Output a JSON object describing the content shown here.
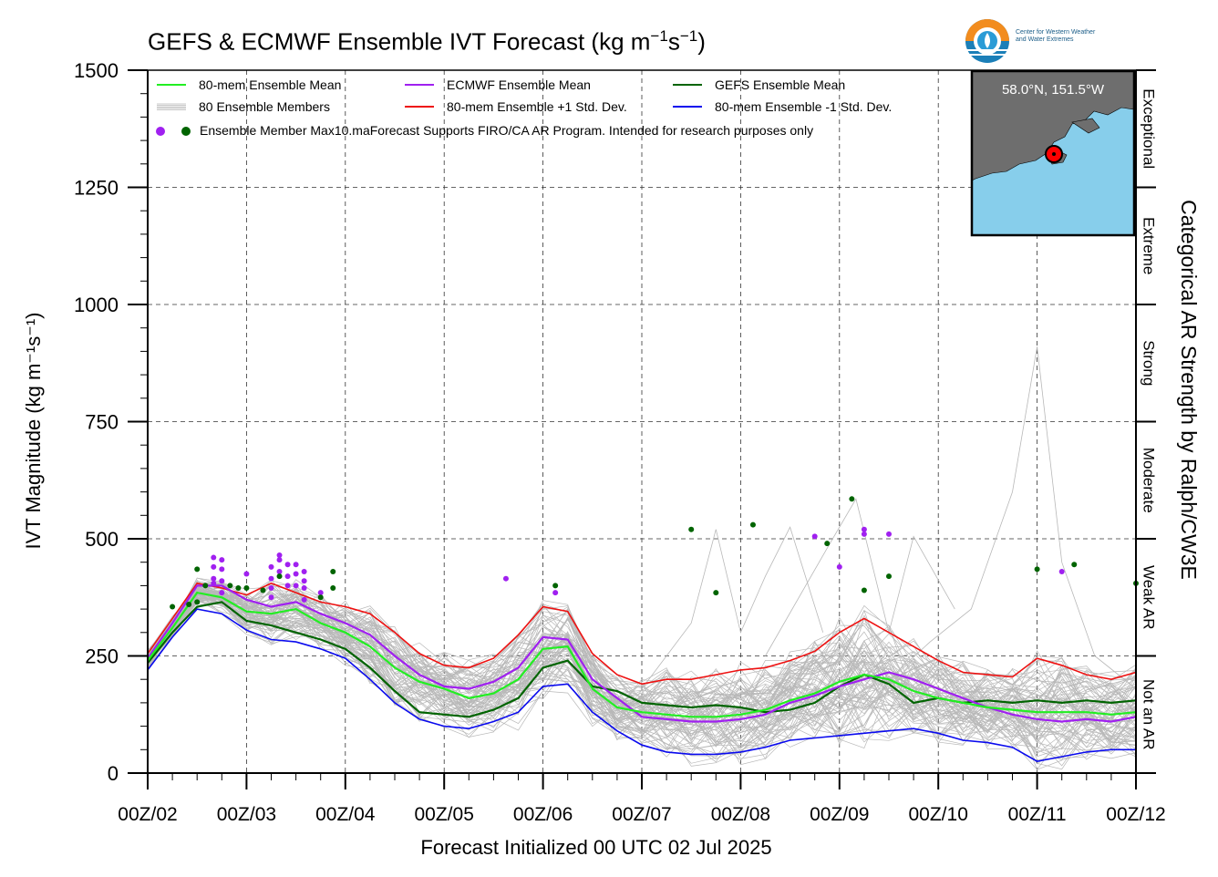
{
  "title": "GEFS & ECMWF Ensemble IVT Forecast (kg m",
  "title_units": {
    "sup1": "−1",
    "mid": "s",
    "sup2": "−1",
    "close": ")"
  },
  "logo": {
    "line1": "Center for Western Weather",
    "line2": "and Water Extremes"
  },
  "inset": {
    "label": "58.0°N, 151.5°W"
  },
  "legend": {
    "mean80": "80-mem Ensemble Mean",
    "members": "80 Ensemble Members",
    "max": "Ensemble Member Max10.maForecast Supports FIRO/CA AR Program. Intended for research purposes only",
    "ecmwf": "ECMWF Ensemble Mean",
    "plus": "80-mem Ensemble +1 Std. Dev.",
    "gefs": "GEFS Ensemble Mean",
    "minus": "80-mem Ensemble -1 Std. Dev."
  },
  "ar_categories": [
    "Not an AR",
    "Weak AR",
    "Moderate",
    "Strong",
    "Extreme",
    "Exceptional"
  ],
  "right_axis_label": "Categorical AR Strength by Ralph/CW3E",
  "colors": {
    "mean80": "#22ee22",
    "ecmwf": "#a020f0",
    "gefs": "#006400",
    "plus": "#ee1111",
    "minus": "#0a0aee",
    "members": "#b8b8b8",
    "inset_land": "#6e6e6e",
    "inset_ocean": "#87ceeb",
    "marker": "#ff0000"
  },
  "chart_data": {
    "type": "line",
    "title": "GEFS & ECMWF Ensemble IVT Forecast (kg m⁻¹s⁻¹)",
    "xlabel": "Forecast Initialized 00 UTC 02 Jul 2025",
    "ylabel": "IVT Magnitude (kg m⁻¹s⁻¹)",
    "ylim": [
      0,
      1500
    ],
    "yticks": [
      0,
      250,
      500,
      750,
      1000,
      1250,
      1500
    ],
    "xlim": [
      0,
      240
    ],
    "x_unit": "forecast hour",
    "xtick_hours": [
      0,
      24,
      48,
      72,
      96,
      120,
      144,
      168,
      192,
      216,
      240
    ],
    "xtick_labels": [
      "00Z/02",
      "00Z/03",
      "00Z/04",
      "00Z/05",
      "00Z/06",
      "00Z/07",
      "00Z/08",
      "00Z/09",
      "00Z/10",
      "00Z/11",
      "00Z/12"
    ],
    "grid": true,
    "legend_position": "top-left",
    "ar_thresholds": [
      0,
      250,
      500,
      750,
      1000,
      1250,
      1500
    ],
    "series": [
      {
        "name": "80-mem Ensemble Mean",
        "key": "mean80",
        "x": [
          0,
          6,
          12,
          18,
          24,
          30,
          36,
          42,
          48,
          54,
          60,
          66,
          72,
          78,
          84,
          90,
          96,
          102,
          108,
          114,
          120,
          126,
          132,
          138,
          144,
          150,
          156,
          162,
          168,
          174,
          180,
          186,
          192,
          198,
          204,
          210,
          216,
          222,
          228,
          234,
          240
        ],
        "y": [
          240,
          310,
          385,
          375,
          345,
          340,
          350,
          320,
          300,
          270,
          225,
          195,
          180,
          160,
          170,
          200,
          265,
          270,
          180,
          140,
          130,
          125,
          120,
          120,
          125,
          135,
          155,
          170,
          195,
          210,
          200,
          175,
          160,
          150,
          140,
          135,
          130,
          130,
          130,
          125,
          130
        ]
      },
      {
        "name": "ECMWF Ensemble Mean",
        "key": "ecmwf",
        "x": [
          0,
          6,
          12,
          18,
          24,
          30,
          36,
          42,
          48,
          54,
          60,
          66,
          72,
          78,
          84,
          90,
          96,
          102,
          108,
          114,
          120,
          126,
          132,
          138,
          144,
          150,
          156,
          162,
          168,
          174,
          180,
          186,
          192,
          198,
          204,
          210,
          216,
          222,
          228,
          234,
          240
        ],
        "y": [
          245,
          320,
          400,
          400,
          370,
          355,
          365,
          340,
          320,
          295,
          250,
          210,
          185,
          180,
          195,
          225,
          290,
          285,
          200,
          160,
          120,
          115,
          110,
          110,
          115,
          125,
          150,
          165,
          185,
          200,
          215,
          200,
          180,
          160,
          140,
          125,
          115,
          110,
          115,
          110,
          120
        ]
      },
      {
        "name": "GEFS Ensemble Mean",
        "key": "gefs",
        "x": [
          0,
          6,
          12,
          18,
          24,
          30,
          36,
          42,
          48,
          54,
          60,
          66,
          72,
          78,
          84,
          90,
          96,
          102,
          108,
          114,
          120,
          126,
          132,
          138,
          144,
          150,
          156,
          162,
          168,
          174,
          180,
          186,
          192,
          198,
          204,
          210,
          216,
          222,
          228,
          234,
          240
        ],
        "y": [
          235,
          300,
          355,
          365,
          325,
          315,
          300,
          285,
          265,
          225,
          175,
          130,
          125,
          120,
          135,
          160,
          225,
          240,
          185,
          175,
          150,
          145,
          140,
          145,
          140,
          130,
          135,
          150,
          185,
          210,
          190,
          150,
          160,
          150,
          155,
          150,
          155,
          150,
          155,
          150,
          155
        ]
      },
      {
        "name": "80-mem Ensemble +1 Std. Dev.",
        "key": "plus",
        "x": [
          0,
          6,
          12,
          18,
          24,
          30,
          36,
          42,
          48,
          54,
          60,
          66,
          72,
          78,
          84,
          90,
          96,
          102,
          108,
          114,
          120,
          126,
          132,
          138,
          144,
          150,
          156,
          162,
          168,
          174,
          180,
          186,
          192,
          198,
          204,
          210,
          216,
          222,
          228,
          234,
          240
        ],
        "y": [
          255,
          330,
          405,
          395,
          380,
          405,
          385,
          365,
          355,
          340,
          300,
          255,
          230,
          225,
          245,
          295,
          355,
          345,
          255,
          210,
          190,
          200,
          200,
          210,
          220,
          225,
          240,
          260,
          300,
          330,
          300,
          270,
          240,
          215,
          210,
          205,
          245,
          230,
          210,
          200,
          215
        ]
      },
      {
        "name": "80-mem Ensemble -1 Std. Dev.",
        "key": "minus",
        "x": [
          0,
          6,
          12,
          18,
          24,
          30,
          36,
          42,
          48,
          54,
          60,
          66,
          72,
          78,
          84,
          90,
          96,
          102,
          108,
          114,
          120,
          126,
          132,
          138,
          144,
          150,
          156,
          162,
          168,
          174,
          180,
          186,
          192,
          198,
          204,
          210,
          216,
          222,
          228,
          234,
          240
        ],
        "y": [
          220,
          290,
          350,
          340,
          305,
          285,
          280,
          265,
          245,
          200,
          150,
          115,
          100,
          95,
          110,
          130,
          185,
          190,
          130,
          90,
          60,
          45,
          40,
          40,
          45,
          55,
          70,
          75,
          80,
          85,
          90,
          95,
          85,
          70,
          65,
          55,
          25,
          35,
          45,
          50,
          50
        ]
      }
    ],
    "members_count": 80,
    "outlier_members": [
      {
        "x": [
          180,
          190,
          200,
          210,
          216,
          222,
          230,
          240
        ],
        "y": [
          200,
          280,
          350,
          600,
          910,
          450,
          250,
          180
        ]
      },
      {
        "x": [
          120,
          132,
          138,
          144,
          150,
          156,
          164
        ],
        "y": [
          180,
          320,
          520,
          300,
          420,
          525,
          300
        ]
      },
      {
        "x": [
          150,
          165,
          172,
          180,
          186,
          196
        ],
        "y": [
          250,
          480,
          585,
          300,
          505,
          350
        ]
      }
    ],
    "max_points": {
      "ecmwf": [
        [
          16,
          460
        ],
        [
          16,
          440
        ],
        [
          16,
          415
        ],
        [
          16,
          405
        ],
        [
          18,
          455
        ],
        [
          18,
          435
        ],
        [
          18,
          410
        ],
        [
          18,
          385
        ],
        [
          24,
          425
        ],
        [
          30,
          440
        ],
        [
          30,
          415
        ],
        [
          30,
          395
        ],
        [
          30,
          375
        ],
        [
          32,
          465
        ],
        [
          32,
          455
        ],
        [
          32,
          430
        ],
        [
          34,
          445
        ],
        [
          34,
          420
        ],
        [
          34,
          400
        ],
        [
          36,
          445
        ],
        [
          36,
          425
        ],
        [
          36,
          400
        ],
        [
          38,
          430
        ],
        [
          38,
          410
        ],
        [
          38,
          395
        ],
        [
          38,
          370
        ],
        [
          42,
          385
        ],
        [
          87,
          415
        ],
        [
          99,
          385
        ],
        [
          162,
          505
        ],
        [
          168,
          440
        ],
        [
          174,
          510
        ],
        [
          174,
          520
        ],
        [
          180,
          510
        ],
        [
          222,
          430
        ]
      ],
      "gefs": [
        [
          6,
          355
        ],
        [
          10,
          360
        ],
        [
          12,
          435
        ],
        [
          12,
          365
        ],
        [
          14,
          400
        ],
        [
          20,
          400
        ],
        [
          22,
          395
        ],
        [
          24,
          395
        ],
        [
          28,
          390
        ],
        [
          32,
          420
        ],
        [
          42,
          375
        ],
        [
          45,
          430
        ],
        [
          45,
          395
        ],
        [
          99,
          400
        ],
        [
          132,
          520
        ],
        [
          138,
          385
        ],
        [
          147,
          530
        ],
        [
          165,
          490
        ],
        [
          171,
          585
        ],
        [
          174,
          390
        ],
        [
          180,
          420
        ],
        [
          216,
          435
        ],
        [
          225,
          445
        ],
        [
          240,
          405
        ]
      ]
    }
  }
}
